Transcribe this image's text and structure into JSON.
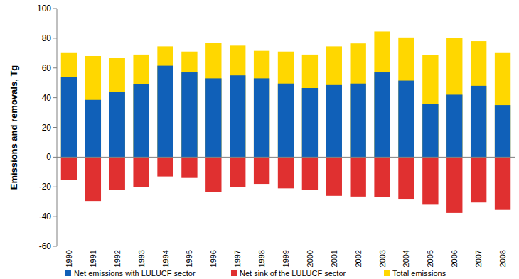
{
  "chart_data": {
    "type": "bar",
    "y_label": "Emissions and removals, Tg",
    "categories": [
      "1990",
      "1991",
      "1992",
      "1993",
      "1994",
      "1995",
      "1996",
      "1997",
      "1998",
      "1999",
      "2000",
      "2001",
      "2002",
      "2003",
      "2004",
      "2005",
      "2006",
      "2007",
      "2008"
    ],
    "series": [
      {
        "name": "Net emissions with LULUCF sector",
        "color": "#1060b8",
        "values": [
          54,
          38.5,
          44,
          49,
          61.5,
          57,
          53,
          55,
          53,
          49.5,
          46.5,
          48.5,
          49.5,
          57,
          51.5,
          36,
          42,
          48,
          35
        ]
      },
      {
        "name": "Net sink of the LULUCF sector",
        "color": "#e03030",
        "values": [
          -15.5,
          -29.5,
          -22,
          -20,
          -13,
          -14,
          -23.5,
          -20,
          -18,
          -21,
          -22,
          -26,
          -26.5,
          -27,
          -28.5,
          -32,
          -37.5,
          -30.5,
          -35.5
        ]
      },
      {
        "name": "Total emissions",
        "color": "#ffd700",
        "values": [
          70.5,
          68,
          67,
          69,
          74.5,
          71,
          77,
          75,
          71.5,
          71,
          69,
          74.5,
          76.5,
          84.5,
          80.5,
          68.5,
          80,
          78,
          70.5
        ]
      }
    ],
    "ylim": [
      -60,
      100
    ],
    "yticks": [
      -60,
      -40,
      -20,
      0,
      20,
      40,
      60,
      80,
      100
    ],
    "grid": false,
    "legend": "bottom"
  }
}
